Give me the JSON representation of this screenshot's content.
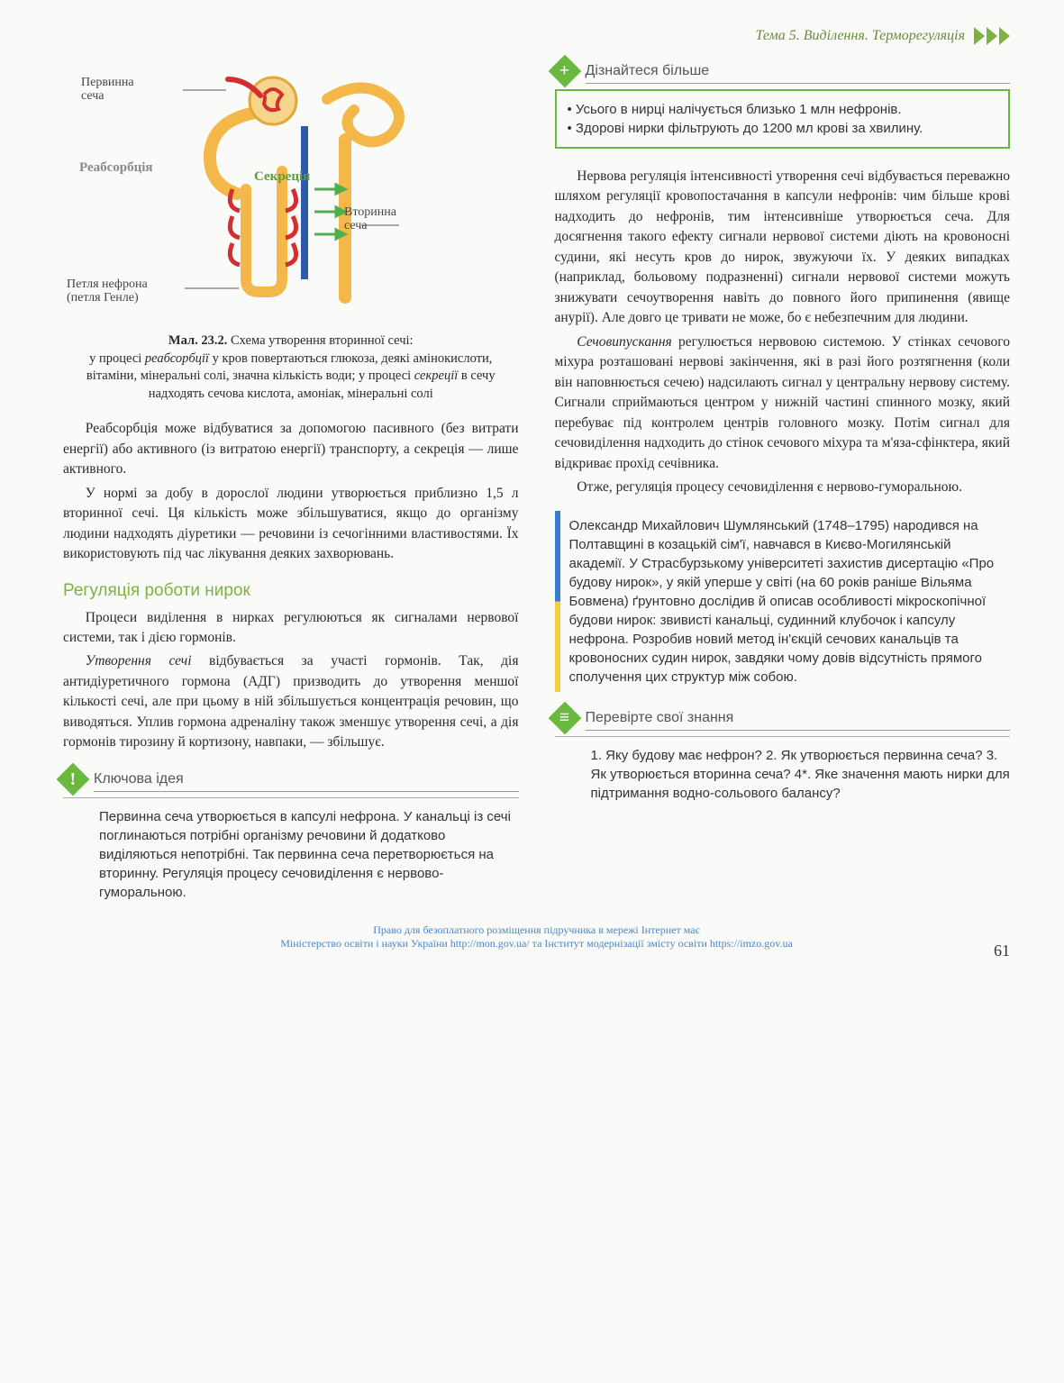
{
  "header": {
    "topic": "Тема 5. Виділення. Терморегуляція"
  },
  "diagram": {
    "labels": {
      "primary_urine": "Первинна\nсеча",
      "reabsorption": "Реабсорбція",
      "secretion": "Секреція",
      "secondary_urine": "Вторинна\nсеча",
      "loop": "Петля нефрона\n(петля Генле)"
    },
    "colors": {
      "artery": "#d32f2f",
      "vein": "#2e5aac",
      "tubule": "#f4b74a",
      "label_green": "#5a9e3a",
      "label_grey": "#8a8a8a"
    }
  },
  "caption": {
    "ref": "Мал. 23.2.",
    "title": "Схема утворення вторинної сечі:",
    "desc_a": "у процесі ",
    "em_a": "реабсорбції",
    "desc_b": " у кров повертаються глюкоза, деякі амінокислоти, вітаміни, мінеральні солі, значна кількість води; у процесі ",
    "em_b": "секреції",
    "desc_c": " в сечу надходять сечова кислота, амоніак, мінеральні солі"
  },
  "left_paras": {
    "p1": "Реабсорбція може відбуватися за допомогою пасивного (без витрати енергії) або активного (із витратою енергії) транспорту, а секреція — лише активного.",
    "p2": "У нормі за добу в дорослої людини утворюється приблизно 1,5 л вторинної сечі. Ця кількість може збільшуватися, якщо до організму людини надходять діуретики — речовини із сечогінними властивостями. Їх використовують під час лікування деяких захворювань.",
    "h1": "Регуляція роботи нирок",
    "p3": "Процеси виділення в нирках регулюються як сигналами нервової системи, так і дією гормонів.",
    "p4_a": "Утворення сечі",
    "p4_b": " відбувається за участі гормонів. Так, дія антидіуретичного гормона (АДГ) призводить до утворення меншої кількості сечі, але при цьому в ній збільшується концентрація речовин, що виводяться. Уплив гормона адреналіну також зменшує утворення сечі, а дія гормонів тирозину й кортизону, навпаки, — збільшує."
  },
  "learnmore": {
    "title": "Дізнайтеся більше",
    "bullet1": "• Усього в нирці налічується близько 1 млн нефронів.",
    "bullet2": "• Здорові нирки фільтрують до 1200 мл крові за хвилину."
  },
  "right_paras": {
    "p1": "Нервова регуляція інтенсивності утворення сечі відбувається переважно шляхом регуляції кровопостачання в капсули нефронів: чим більше крові надходить до нефронів, тим інтенсивніше утворюється сеча. Для досягнення такого ефекту сигнали нервової системи діють на кровоносні судини, які несуть кров до нирок, звужуючи їх. У деяких випадках (наприклад, больовому подразненні) сигнали нервової системи можуть знижувати сечоутворення навіть до повного його припинення (явище анурії). Але довго це тривати не може, бо є небезпечним для людини.",
    "p2_a": "Сечовипускання",
    "p2_b": " регулюється нервовою системою. У стінках сечового міхура розташовані нервові закінчення, які в разі його розтягнення (коли він наповнюється сечею) надсилають сигнал у центральну нервову систему. Сигнали сприймаються центром у нижній частині спинного мозку, який перебуває під контролем центрів головного мозку. Потім сигнал для сечовиділення надходить до стінок сечового міхура та м'яза-сфінктера, який відкриває прохід сечівника.",
    "p3": "Отже, регуляція процесу сечовиділення є нервово-гуморальною."
  },
  "bio": {
    "text": "Олександр Михайлович Шумлянський (1748–1795) народився на Полтавщині в козацькій сім'ї, навчався в Києво-Могилянській академії. У Страсбурзькому університеті захистив дисертацію «Про будову нирок», у якій уперше у світі (на 60 років раніше Вільяма Бовмена) ґрунтовно дослідив й описав особливості мікроскопічної будови нирок: звивисті канальці, судинний клубочок і капсулу нефрона. Розробив новий метод ін'єкцій сечових канальців та кровоносних судин нирок, завдяки чому довів відсутність прямого сполучення цих структур між собою."
  },
  "keyidea": {
    "title": "Ключова ідея",
    "text": "Первинна сеча утворюється в капсулі нефрона. У канальці із сечі поглинаються потрібні організму речовини й додатково виділяються непотрібні. Так первинна сеча перетворюється на вторинну. Регуляція процесу сечовиділення є нервово-гуморальною."
  },
  "check": {
    "title": "Перевірте свої знання",
    "q": "1. Яку будову має нефрон? 2. Як утворюється первинна сеча? 3. Як утворюється вторинна сеча? 4*. Яке значення мають нирки для підтримання водно-сольового балансу?"
  },
  "footer": {
    "line1": "Право для безоплатного розміщення підручника в мережі Інтернет має",
    "line2": "Міністерство освіти і науки України http://mon.gov.ua/ та Інститут модернізації змісту освіти https://imzo.gov.ua"
  },
  "page_number": "61"
}
